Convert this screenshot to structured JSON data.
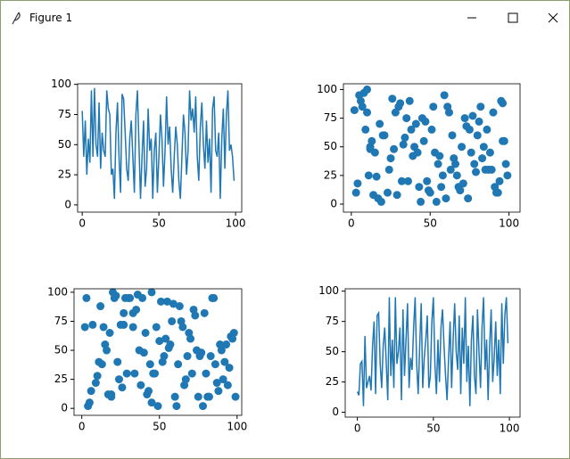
{
  "window": {
    "title": "Figure 1"
  },
  "chart_data": [
    {
      "type": "line",
      "color": "#1f77b4",
      "x": [
        0,
        1,
        2,
        3,
        4,
        5,
        6,
        7,
        8,
        9,
        10,
        11,
        12,
        13,
        14,
        15,
        16,
        17,
        18,
        19,
        20,
        21,
        22,
        23,
        24,
        25,
        26,
        27,
        28,
        29,
        30,
        31,
        32,
        33,
        34,
        35,
        36,
        37,
        38,
        39,
        40,
        41,
        42,
        43,
        44,
        45,
        46,
        47,
        48,
        49,
        50,
        51,
        52,
        53,
        54,
        55,
        56,
        57,
        58,
        59,
        60,
        61,
        62,
        63,
        64,
        65,
        66,
        67,
        68,
        69,
        70,
        71,
        72,
        73,
        74,
        75,
        76,
        77,
        78,
        79,
        80,
        81,
        82,
        83,
        84,
        85,
        86,
        87,
        88,
        89,
        90,
        91,
        92,
        93,
        94,
        95,
        96,
        97,
        98,
        99
      ],
      "values": [
        78,
        40,
        70,
        25,
        55,
        35,
        95,
        40,
        97,
        50,
        40,
        85,
        30,
        60,
        45,
        40,
        95,
        80,
        75,
        25,
        30,
        5,
        60,
        85,
        40,
        10,
        92,
        88,
        60,
        30,
        20,
        55,
        70,
        40,
        10,
        75,
        95,
        50,
        5,
        40,
        70,
        15,
        30,
        80,
        45,
        55,
        5,
        45,
        60,
        10,
        40,
        75,
        55,
        15,
        45,
        90,
        50,
        65,
        30,
        10,
        40,
        65,
        50,
        20,
        5,
        40,
        75,
        60,
        25,
        45,
        95,
        70,
        80,
        60,
        90,
        40,
        20,
        65,
        85,
        50,
        30,
        70,
        35,
        55,
        10,
        80,
        90,
        45,
        40,
        60,
        5,
        55,
        80,
        30,
        75,
        95,
        45,
        50,
        40,
        20
      ],
      "xlim": [
        -3,
        104
      ],
      "ylim": [
        -6,
        100.5
      ],
      "xticks": [
        0,
        50,
        100
      ],
      "yticks": [
        0,
        25,
        50,
        75,
        100
      ]
    },
    {
      "type": "scatter",
      "color": "#1f77b4",
      "x": [
        3,
        5,
        8,
        10,
        12,
        15,
        11,
        9,
        7,
        13,
        18,
        20,
        25,
        28,
        30,
        32,
        35,
        38,
        40,
        42,
        45,
        48,
        50,
        52,
        55,
        58,
        60,
        62,
        65,
        68,
        70,
        72,
        75,
        78,
        80,
        82,
        85,
        88,
        90,
        92,
        95,
        97,
        98,
        99,
        96,
        93,
        87,
        83,
        77,
        73,
        67,
        63,
        57,
        53,
        47,
        43,
        37,
        33,
        27,
        23,
        17,
        14,
        6,
        2,
        4,
        21,
        26,
        31,
        36,
        41,
        44,
        46,
        49,
        51,
        54,
        56,
        59,
        61,
        64,
        66,
        69,
        71,
        74,
        76,
        79,
        81,
        84,
        86,
        89,
        91,
        94,
        96,
        12,
        24,
        34,
        39,
        29,
        19,
        16,
        10
      ],
      "values": [
        10,
        95,
        97,
        80,
        50,
        45,
        25,
        65,
        85,
        55,
        70,
        60,
        40,
        80,
        85,
        20,
        75,
        65,
        50,
        45,
        75,
        20,
        10,
        85,
        35,
        25,
        5,
        80,
        40,
        15,
        50,
        75,
        65,
        35,
        60,
        85,
        30,
        45,
        80,
        10,
        90,
        55,
        35,
        25,
        88,
        10,
        30,
        40,
        77,
        68,
        25,
        30,
        15,
        45,
        72,
        15,
        90,
        52,
        48,
        10,
        5,
        8,
        90,
        82,
        18,
        60,
        92,
        88,
        20,
        70,
        2,
        55,
        12,
        65,
        2,
        42,
        95,
        85,
        60,
        35,
        12,
        18,
        5,
        45,
        28,
        72,
        50,
        65,
        30,
        15,
        20,
        55,
        48,
        30,
        58,
        42,
        8,
        2,
        24,
        100
      ],
      "xlim": [
        -5,
        107
      ],
      "ylim": [
        -7,
        105
      ],
      "xticks": [
        0,
        50,
        100
      ],
      "yticks": [
        0,
        25,
        50,
        75,
        100
      ]
    },
    {
      "type": "scatter",
      "color": "#1f77b4",
      "x": [
        2,
        4,
        7,
        10,
        13,
        16,
        18,
        20,
        22,
        25,
        28,
        30,
        33,
        35,
        38,
        40,
        42,
        45,
        48,
        50,
        52,
        55,
        58,
        60,
        62,
        65,
        68,
        70,
        72,
        75,
        78,
        80,
        83,
        85,
        88,
        90,
        93,
        95,
        97,
        99,
        96,
        92,
        87,
        82,
        77,
        73,
        67,
        63,
        57,
        53,
        47,
        43,
        37,
        33,
        27,
        23,
        17,
        14,
        9,
        5,
        3,
        6,
        11,
        15,
        19,
        21,
        26,
        31,
        36,
        41,
        44,
        46,
        49,
        51,
        54,
        56,
        59,
        61,
        64,
        66,
        69,
        71,
        74,
        76,
        79,
        81,
        84,
        86,
        89,
        91,
        94,
        98,
        12,
        24,
        34,
        39,
        29,
        19,
        27,
        45
      ],
      "values": [
        70,
        2,
        72,
        28,
        38,
        50,
        65,
        100,
        97,
        72,
        95,
        95,
        82,
        85,
        20,
        48,
        12,
        100,
        70,
        58,
        40,
        92,
        75,
        10,
        38,
        70,
        45,
        60,
        85,
        10,
        2,
        30,
        45,
        95,
        15,
        50,
        55,
        35,
        60,
        10,
        62,
        40,
        22,
        10,
        48,
        80,
        25,
        88,
        55,
        45,
        30,
        15,
        50,
        70,
        82,
        40,
        12,
        70,
        22,
        5,
        95,
        15,
        40,
        55,
        12,
        95,
        18,
        95,
        98,
        65,
        38,
        30,
        2,
        92,
        60,
        52,
        90,
        2,
        75,
        20,
        65,
        30,
        50,
        45,
        82,
        10,
        95,
        38,
        55,
        25,
        20,
        65,
        88,
        25,
        30,
        95,
        30,
        10,
        72,
        5
      ],
      "xlim": [
        -5,
        103
      ],
      "ylim": [
        -6,
        103
      ],
      "xticks": [
        0,
        50,
        100
      ],
      "yticks": [
        0,
        25,
        50,
        75,
        100
      ]
    },
    {
      "type": "line",
      "color": "#1f77b4",
      "x": [
        0,
        1,
        2,
        3,
        4,
        5,
        6,
        7,
        8,
        9,
        10,
        11,
        12,
        13,
        14,
        15,
        16,
        17,
        18,
        19,
        20,
        21,
        22,
        23,
        24,
        25,
        26,
        27,
        28,
        29,
        30,
        31,
        32,
        33,
        34,
        35,
        36,
        37,
        38,
        39,
        40,
        41,
        42,
        43,
        44,
        45,
        46,
        47,
        48,
        49,
        50,
        51,
        52,
        53,
        54,
        55,
        56,
        57,
        58,
        59,
        60,
        61,
        62,
        63,
        64,
        65,
        66,
        67,
        68,
        69,
        70,
        71,
        72,
        73,
        74,
        75,
        76,
        77,
        78,
        79,
        80,
        81,
        82,
        83,
        84,
        85,
        86,
        87,
        88,
        89,
        90,
        91,
        92,
        93,
        94,
        95,
        96,
        97,
        98,
        99
      ],
      "values": [
        17,
        14,
        40,
        42,
        5,
        63,
        20,
        25,
        30,
        18,
        55,
        75,
        15,
        80,
        82,
        40,
        20,
        55,
        70,
        40,
        10,
        95,
        30,
        60,
        20,
        95,
        40,
        50,
        70,
        10,
        85,
        30,
        60,
        90,
        20,
        45,
        35,
        70,
        95,
        40,
        15,
        55,
        90,
        20,
        45,
        60,
        80,
        20,
        30,
        75,
        95,
        40,
        15,
        60,
        25,
        70,
        85,
        55,
        30,
        10,
        45,
        75,
        20,
        60,
        90,
        50,
        35,
        80,
        15,
        70,
        40,
        95,
        25,
        55,
        5,
        60,
        80,
        30,
        15,
        85,
        50,
        20,
        70,
        95,
        35,
        60,
        10,
        55,
        85,
        25,
        45,
        75,
        30,
        60,
        15,
        90,
        40,
        80,
        95,
        57
      ],
      "xlim": [
        -8,
        107
      ],
      "ylim": [
        -4,
        102
      ],
      "xticks": [
        0,
        50,
        100
      ],
      "yticks": [
        0,
        25,
        50,
        75,
        100
      ]
    }
  ]
}
